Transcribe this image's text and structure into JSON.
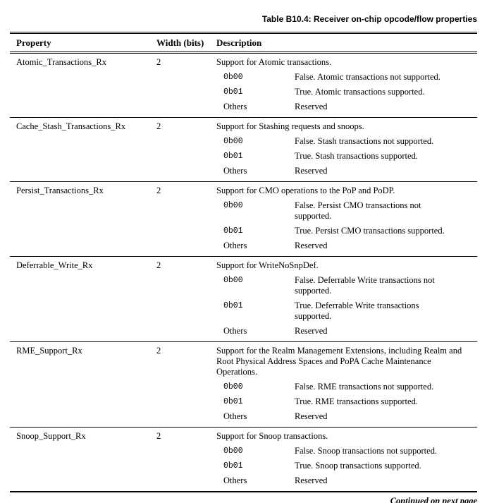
{
  "caption": "Table B10.4: Receiver on-chip opcode/flow properties",
  "footer_note": "Continued on next page",
  "table": {
    "headers": {
      "property": "Property",
      "width": "Width (bits)",
      "description": "Description"
    },
    "rows": [
      {
        "property": "Atomic_Transactions_Rx",
        "width": "2",
        "description": "Support for Atomic transactions.",
        "values": [
          {
            "code": "0b00",
            "meaning": "False. Atomic transactions not supported."
          },
          {
            "code": "0b01",
            "meaning": "True. Atomic transactions supported."
          },
          {
            "code": "Others",
            "meaning": "Reserved"
          }
        ]
      },
      {
        "property": "Cache_Stash_Transactions_Rx",
        "width": "2",
        "description": "Support for Stashing requests and snoops.",
        "values": [
          {
            "code": "0b00",
            "meaning": "False. Stash transactions not supported."
          },
          {
            "code": "0b01",
            "meaning": "True. Stash transactions supported."
          },
          {
            "code": "Others",
            "meaning": "Reserved"
          }
        ]
      },
      {
        "property": "Persist_Transactions_Rx",
        "width": "2",
        "description": "Support for CMO operations to the PoP and PoDP.",
        "values": [
          {
            "code": "0b00",
            "meaning": "False. Persist CMO transactions not\nsupported."
          },
          {
            "code": "0b01",
            "meaning": "True. Persist CMO transactions supported."
          },
          {
            "code": "Others",
            "meaning": "Reserved"
          }
        ]
      },
      {
        "property": "Deferrable_Write_Rx",
        "width": "2",
        "description": "Support for WriteNoSnpDef.",
        "values": [
          {
            "code": "0b00",
            "meaning": "False. Deferrable Write transactions not\nsupported."
          },
          {
            "code": "0b01",
            "meaning": "True. Deferrable Write transactions\nsupported."
          },
          {
            "code": "Others",
            "meaning": "Reserved"
          }
        ]
      },
      {
        "property": "RME_Support_Rx",
        "width": "2",
        "description": "Support for the Realm Management Extensions, including Realm and\nRoot Physical Address Spaces and PoPA Cache Maintenance\nOperations.",
        "values": [
          {
            "code": "0b00",
            "meaning": "False. RME transactions not supported."
          },
          {
            "code": "0b01",
            "meaning": "True. RME transactions supported."
          },
          {
            "code": "Others",
            "meaning": "Reserved"
          }
        ]
      },
      {
        "property": "Snoop_Support_Rx",
        "width": "2",
        "description": "Support for Snoop transactions.",
        "values": [
          {
            "code": "0b00",
            "meaning": "False. Snoop transactions not supported."
          },
          {
            "code": "0b01",
            "meaning": "True. Snoop transactions supported."
          },
          {
            "code": "Others",
            "meaning": "Reserved"
          }
        ]
      }
    ]
  }
}
